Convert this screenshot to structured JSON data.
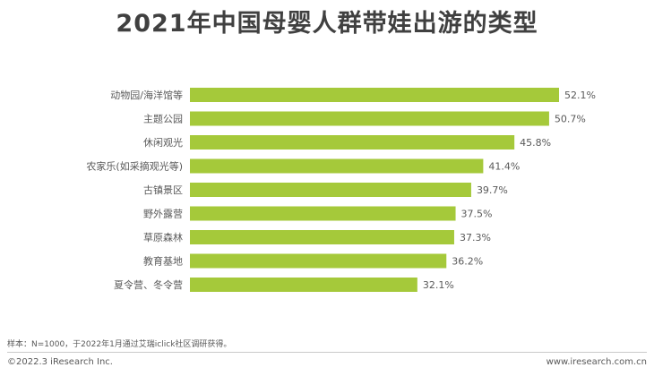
{
  "title": "2021年中国母婴人群带娃出游的类型",
  "chart_data": {
    "type": "bar",
    "orientation": "horizontal",
    "categories": [
      "动物园/海洋馆等",
      "主题公园",
      "休闲观光",
      "农家乐(如采摘观光等)",
      "古镇景区",
      "野外露营",
      "草原森林",
      "教育基地",
      "夏令营、冬令营"
    ],
    "values": [
      52.1,
      50.7,
      45.8,
      41.4,
      39.7,
      37.5,
      37.3,
      36.2,
      32.1
    ],
    "value_labels": [
      "52.1%",
      "50.7%",
      "45.8%",
      "41.4%",
      "39.7%",
      "37.5%",
      "37.3%",
      "36.2%",
      "32.1%"
    ],
    "unit": "%",
    "xlim": [
      0,
      52.1
    ],
    "bar_color": "#a5c93a",
    "grid": false,
    "legend": "none"
  },
  "note": "样本：N=1000，于2022年1月通过艾瑞iclick社区调研获得。",
  "footer": {
    "copyright": "©2022.3 iResearch Inc.",
    "website": "www.iresearch.com.cn"
  }
}
